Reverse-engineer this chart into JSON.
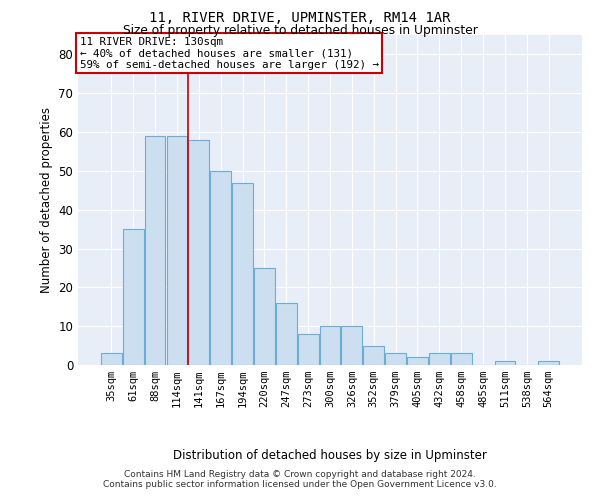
{
  "title1": "11, RIVER DRIVE, UPMINSTER, RM14 1AR",
  "title2": "Size of property relative to detached houses in Upminster",
  "xlabel": "Distribution of detached houses by size in Upminster",
  "ylabel": "Number of detached properties",
  "bar_color": "#ccdff0",
  "bar_edge_color": "#6aaed6",
  "background_color": "#e8eef8",
  "categories": [
    "35sqm",
    "61sqm",
    "88sqm",
    "114sqm",
    "141sqm",
    "167sqm",
    "194sqm",
    "220sqm",
    "247sqm",
    "273sqm",
    "300sqm",
    "326sqm",
    "352sqm",
    "379sqm",
    "405sqm",
    "432sqm",
    "458sqm",
    "485sqm",
    "511sqm",
    "538sqm",
    "564sqm"
  ],
  "values": [
    3,
    35,
    59,
    59,
    58,
    50,
    47,
    25,
    16,
    8,
    10,
    10,
    5,
    3,
    2,
    3,
    3,
    0,
    1,
    0,
    1
  ],
  "ylim": [
    0,
    85
  ],
  "yticks": [
    0,
    10,
    20,
    30,
    40,
    50,
    60,
    70,
    80
  ],
  "annotation_text_line1": "11 RIVER DRIVE: 130sqm",
  "annotation_text_line2": "← 40% of detached houses are smaller (131)",
  "annotation_text_line3": "59% of semi-detached houses are larger (192) →",
  "annotation_box_edgecolor": "#cc0000",
  "vline_color": "#cc0000",
  "vline_x": 3.5,
  "footer_line1": "Contains HM Land Registry data © Crown copyright and database right 2024.",
  "footer_line2": "Contains public sector information licensed under the Open Government Licence v3.0."
}
